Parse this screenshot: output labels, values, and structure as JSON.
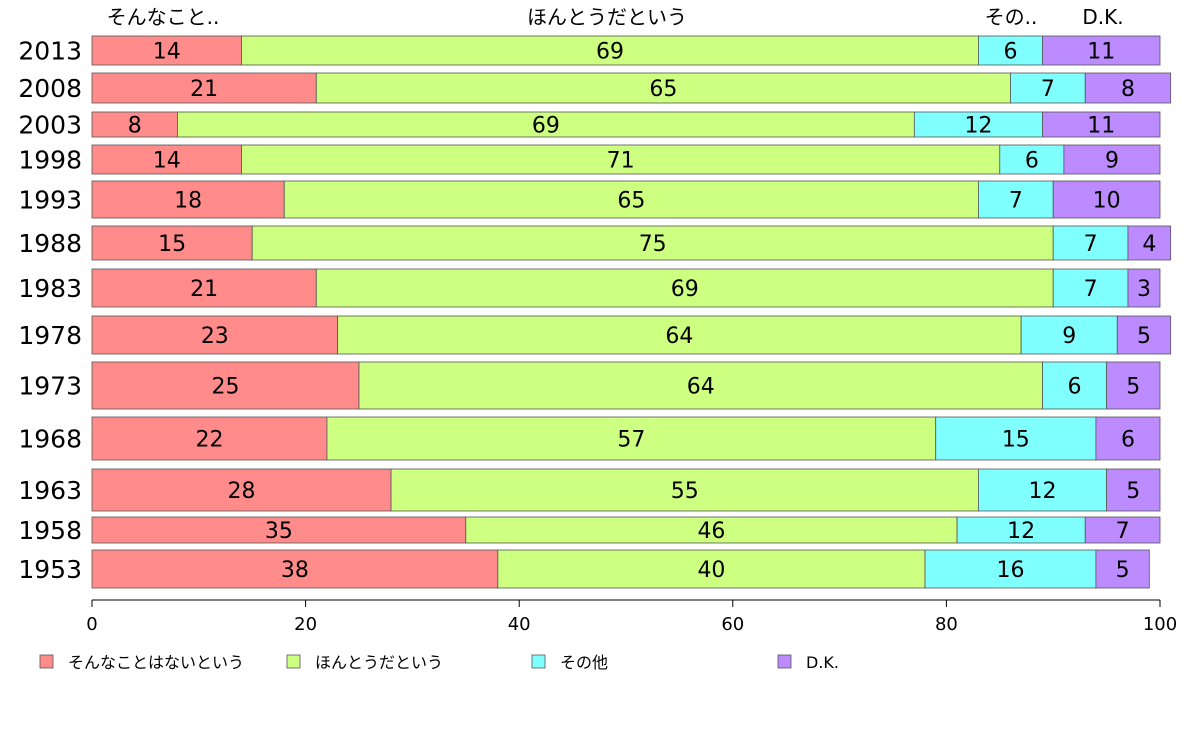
{
  "chart_data": {
    "type": "bar",
    "orientation": "horizontal",
    "stacked": true,
    "categories": [
      "2013",
      "2008",
      "2003",
      "1998",
      "1993",
      "1988",
      "1983",
      "1978",
      "1973",
      "1968",
      "1963",
      "1958",
      "1953"
    ],
    "series": [
      {
        "name": "そんなことはないという",
        "color": "#ff8b8b",
        "values": [
          14,
          21,
          8,
          14,
          18,
          15,
          21,
          23,
          25,
          22,
          28,
          35,
          38
        ]
      },
      {
        "name": "ほんとうだという",
        "color": "#cdff80",
        "values": [
          69,
          65,
          69,
          71,
          65,
          75,
          69,
          64,
          64,
          57,
          55,
          46,
          40
        ]
      },
      {
        "name": "その他",
        "color": "#80ffff",
        "values": [
          6,
          7,
          12,
          6,
          7,
          7,
          7,
          9,
          6,
          15,
          12,
          12,
          16
        ]
      },
      {
        "name": "D.K.",
        "color": "#bb8bff",
        "values": [
          11,
          8,
          11,
          9,
          10,
          4,
          3,
          5,
          5,
          6,
          5,
          7,
          5
        ]
      }
    ],
    "top_labels": [
      "そんなこと..",
      "ほんとうだという",
      "その..",
      "D.K."
    ],
    "xlim": [
      0,
      100
    ],
    "xticks": [
      0,
      20,
      40,
      60,
      80,
      100
    ],
    "legend_position": "bottom",
    "grid": false,
    "title": "",
    "xlabel": "",
    "ylabel": ""
  }
}
